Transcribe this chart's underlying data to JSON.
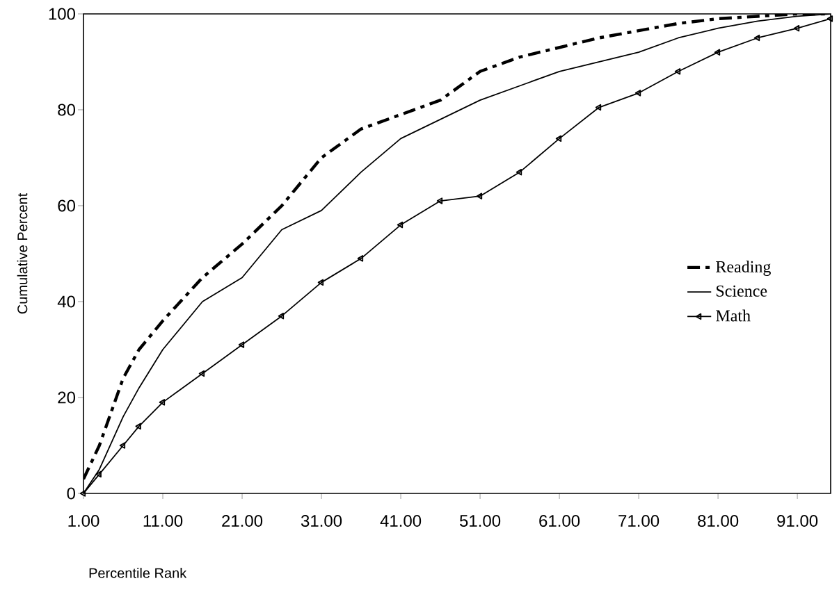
{
  "chart_data": {
    "type": "line",
    "xlabel": "Percentile Rank",
    "ylabel": "Cumulative Percent",
    "xlim": [
      1,
      95.2
    ],
    "ylim": [
      0,
      100
    ],
    "xticks": [
      {
        "value": 1,
        "label": "1.00"
      },
      {
        "value": 11,
        "label": "11.00"
      },
      {
        "value": 21,
        "label": "21.00"
      },
      {
        "value": 31,
        "label": "31.00"
      },
      {
        "value": 41,
        "label": "41.00"
      },
      {
        "value": 51,
        "label": "51.00"
      },
      {
        "value": 61,
        "label": "61.00"
      },
      {
        "value": 71,
        "label": "71.00"
      },
      {
        "value": 81,
        "label": "81.00"
      },
      {
        "value": 91,
        "label": "91.00"
      }
    ],
    "yticks": [
      0,
      20,
      40,
      60,
      80,
      100
    ],
    "x": [
      1,
      3,
      6,
      8,
      11,
      16,
      21,
      26,
      31,
      36,
      41,
      46,
      51,
      56,
      61,
      66,
      71,
      76,
      81,
      86,
      91,
      95.2
    ],
    "series": [
      {
        "name": "Reading",
        "color": "#000000",
        "line_style": "dashed",
        "marker": "none",
        "values": [
          3,
          10,
          24,
          30,
          36,
          45,
          52,
          60,
          70,
          76,
          79,
          82,
          88,
          91,
          93,
          95,
          96.5,
          98,
          99,
          99.5,
          100,
          100
        ]
      },
      {
        "name": "Science",
        "color": "#000000",
        "line_style": "solid",
        "marker": "none",
        "values": [
          0,
          5,
          16,
          22,
          30,
          40,
          45,
          55,
          59,
          67,
          74,
          78,
          82,
          85,
          88,
          90,
          92,
          95,
          97,
          98.5,
          99.5,
          100
        ]
      },
      {
        "name": "Math",
        "color": "#000000",
        "line_style": "solid",
        "marker": "triangle",
        "values": [
          0,
          4,
          10,
          14,
          19,
          25,
          31,
          37,
          44,
          49,
          56,
          61,
          62,
          67,
          74,
          80.5,
          83.5,
          88,
          92,
          95,
          97,
          99
        ]
      }
    ],
    "legend": "right",
    "grid": false
  }
}
